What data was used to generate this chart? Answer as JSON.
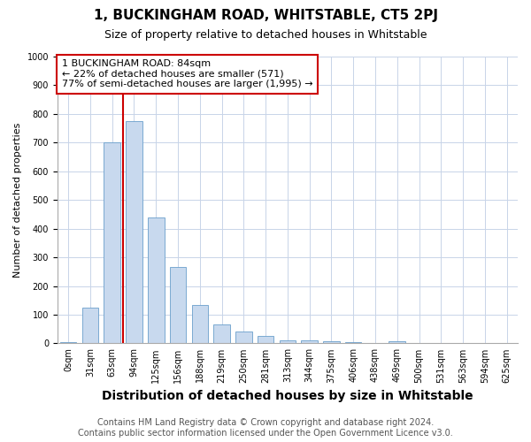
{
  "title": "1, BUCKINGHAM ROAD, WHITSTABLE, CT5 2PJ",
  "subtitle": "Size of property relative to detached houses in Whitstable",
  "xlabel": "Distribution of detached houses by size in Whitstable",
  "ylabel": "Number of detached properties",
  "footer_line1": "Contains HM Land Registry data © Crown copyright and database right 2024.",
  "footer_line2": "Contains public sector information licensed under the Open Government Licence v3.0.",
  "categories": [
    "0sqm",
    "31sqm",
    "63sqm",
    "94sqm",
    "125sqm",
    "156sqm",
    "188sqm",
    "219sqm",
    "250sqm",
    "281sqm",
    "313sqm",
    "344sqm",
    "375sqm",
    "406sqm",
    "438sqm",
    "469sqm",
    "500sqm",
    "531sqm",
    "563sqm",
    "594sqm",
    "625sqm"
  ],
  "values": [
    3,
    125,
    700,
    775,
    440,
    265,
    135,
    65,
    40,
    25,
    10,
    10,
    8,
    3,
    0,
    8,
    0,
    0,
    0,
    0,
    0
  ],
  "bar_color": "#c8d9ee",
  "bar_edge_color": "#6a9fcb",
  "vline_color": "#cc0000",
  "vline_index": 2.5,
  "annotation_text_line1": "1 BUCKINGHAM ROAD: 84sqm",
  "annotation_text_line2": "← 22% of detached houses are smaller (571)",
  "annotation_text_line3": "77% of semi-detached houses are larger (1,995) →",
  "annotation_box_color": "#cc0000",
  "ylim": [
    0,
    1000
  ],
  "yticks": [
    0,
    100,
    200,
    300,
    400,
    500,
    600,
    700,
    800,
    900,
    1000
  ],
  "background_color": "#ffffff",
  "grid_color": "#c8d4e8",
  "title_fontsize": 11,
  "subtitle_fontsize": 9,
  "xlabel_fontsize": 10,
  "ylabel_fontsize": 8,
  "tick_fontsize": 7,
  "footer_fontsize": 7,
  "annotation_fontsize": 8
}
